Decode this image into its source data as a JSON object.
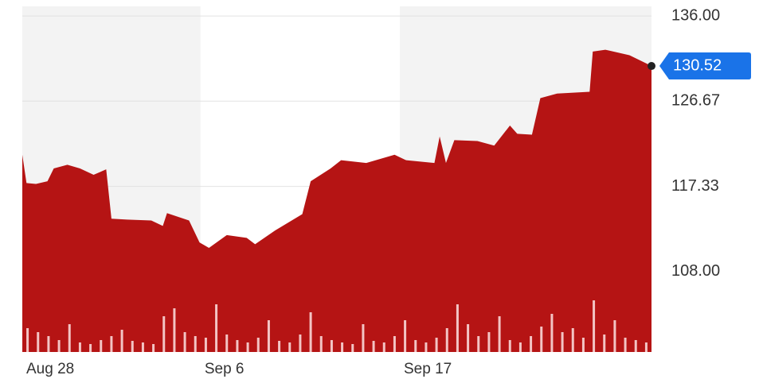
{
  "chart_data": {
    "type": "area",
    "x": [
      0,
      0.4,
      1.3,
      2.4,
      3.0,
      4.3,
      5.5,
      6.8,
      8.0,
      8.5,
      10.0,
      12.3,
      13.4,
      13.8,
      15.9,
      16.9,
      17.8,
      19.5,
      21.4,
      22.2,
      24.1,
      26.7,
      27.5,
      29.4,
      30.4,
      32.8,
      35.5,
      36.6,
      39.3,
      39.8,
      40.4,
      41.2,
      43.4,
      45.0,
      46.5,
      47.2,
      48.6,
      49.4,
      51.0,
      54.1,
      54.4,
      55.6,
      57.9,
      60
    ],
    "series": [
      {
        "color": "#b51414",
        "values": [
          120.8,
          117.7,
          117.6,
          117.9,
          119.3,
          119.7,
          119.3,
          118.6,
          119.2,
          113.8,
          113.7,
          113.6,
          113.0,
          114.4,
          113.6,
          111.2,
          110.6,
          112.0,
          111.7,
          111.0,
          112.5,
          114.3,
          117.9,
          119.3,
          120.2,
          119.9,
          120.8,
          120.2,
          119.9,
          122.8,
          119.9,
          122.4,
          122.3,
          121.8,
          124.0,
          123.1,
          123.0,
          127.0,
          127.5,
          127.7,
          132.1,
          132.3,
          131.7,
          130.52
        ]
      }
    ],
    "volume": {
      "color": "#f3c4c4",
      "x": [
        0,
        1,
        2,
        3,
        4,
        5,
        6,
        7,
        8,
        9,
        10,
        11,
        12,
        13,
        14,
        15,
        16,
        17,
        18,
        19,
        20,
        21,
        22,
        23,
        24,
        25,
        26,
        27,
        28,
        29,
        30,
        31,
        32,
        33,
        34,
        35,
        36,
        37,
        38,
        39,
        40,
        41,
        42,
        43,
        44,
        45,
        46,
        47,
        48,
        49,
        50,
        51,
        52,
        53,
        54,
        55,
        56,
        57,
        58,
        59
      ],
      "values": [
        30,
        25,
        20,
        15,
        35,
        12,
        10,
        15,
        20,
        28,
        14,
        12,
        10,
        45,
        55,
        25,
        20,
        18,
        60,
        22,
        15,
        12,
        18,
        40,
        14,
        12,
        22,
        50,
        20,
        15,
        12,
        10,
        35,
        14,
        12,
        20,
        40,
        15,
        12,
        18,
        30,
        60,
        35,
        20,
        25,
        45,
        15,
        12,
        20,
        32,
        48,
        25,
        30,
        18,
        65,
        22,
        40,
        18,
        15,
        12
      ]
    },
    "y2lim": [
      0,
      100
    ],
    "xlim": [
      0,
      60
    ],
    "xticks": [
      {
        "value": 0,
        "label": "Aug 28"
      },
      {
        "value": 17,
        "label": "Sep 6"
      },
      {
        "value": 36,
        "label": "Sep 17"
      }
    ],
    "ylim": [
      99.2,
      137.05
    ],
    "yticks": [
      {
        "value": 108,
        "label": "108.00"
      },
      117.33,
      126.67,
      {
        "value": 136,
        "label": "136.00"
      }
    ],
    "grid": true
  }
}
